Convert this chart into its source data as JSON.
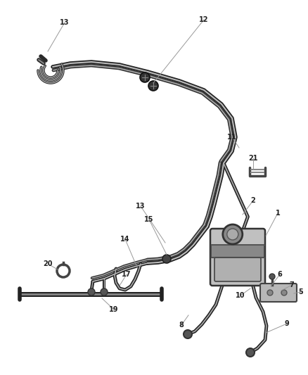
{
  "bg_color": "#ffffff",
  "line_color": "#3a3a3a",
  "thin_color": "#555555",
  "callout_color": "#999999",
  "label_color": "#222222",
  "figsize": [
    4.38,
    5.33
  ],
  "dpi": 100,
  "hose_lw": 1.8,
  "hose_lw2": 1.2,
  "callout_lw": 0.7,
  "label_fs": 7.0
}
